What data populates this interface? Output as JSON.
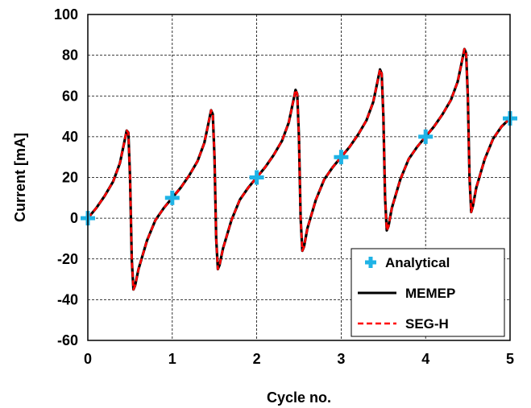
{
  "chart_data": {
    "type": "line",
    "xlabel": "Cycle no.",
    "ylabel": "Current [mA]",
    "xlim": [
      0,
      5
    ],
    "ylim": [
      -60,
      100
    ],
    "xticks": [
      0,
      1,
      2,
      3,
      4,
      5
    ],
    "yticks": [
      -60,
      -40,
      -20,
      0,
      20,
      40,
      60,
      80,
      100
    ],
    "grid": true,
    "grid_style": "dashed",
    "legend_position": "bottom-right",
    "series": [
      {
        "name": "Analytical",
        "style": "markers",
        "marker": "plus",
        "color": "#1FB3E6",
        "x": [
          0,
          1,
          2,
          3,
          4,
          5
        ],
        "y": [
          0,
          10,
          20,
          30,
          40,
          49
        ]
      },
      {
        "name": "MEMEP",
        "style": "solid-line",
        "color": "#000000",
        "x": [
          0.0,
          0.1,
          0.2,
          0.3,
          0.38,
          0.43,
          0.46,
          0.48,
          0.5,
          0.52,
          0.54,
          0.56,
          0.6,
          0.7,
          0.8,
          0.9,
          1.0,
          1.1,
          1.2,
          1.3,
          1.38,
          1.43,
          1.46,
          1.48,
          1.5,
          1.52,
          1.54,
          1.56,
          1.6,
          1.7,
          1.8,
          1.9,
          2.0,
          2.1,
          2.2,
          2.3,
          2.38,
          2.43,
          2.46,
          2.48,
          2.5,
          2.52,
          2.54,
          2.56,
          2.6,
          2.7,
          2.8,
          2.9,
          3.0,
          3.1,
          3.2,
          3.3,
          3.38,
          3.43,
          3.46,
          3.48,
          3.5,
          3.52,
          3.54,
          3.56,
          3.6,
          3.7,
          3.8,
          3.9,
          4.0,
          4.1,
          4.2,
          4.3,
          4.38,
          4.43,
          4.46,
          4.48,
          4.5,
          4.52,
          4.54,
          4.56,
          4.6,
          4.7,
          4.8,
          4.9,
          5.0
        ],
        "y": [
          0,
          5,
          11,
          18,
          27,
          37,
          43,
          42,
          20,
          -20,
          -35,
          -33,
          -25,
          -11,
          -1,
          5,
          10,
          15,
          21,
          28,
          37,
          47,
          53,
          51,
          30,
          -10,
          -25,
          -23,
          -15,
          -1,
          9,
          15,
          20,
          25,
          31,
          38,
          47,
          57,
          63,
          61,
          40,
          0,
          -16,
          -14,
          -5,
          9,
          19,
          25,
          30,
          35,
          41,
          48,
          57,
          67,
          73,
          71,
          50,
          10,
          -6,
          -4,
          5,
          19,
          29,
          35,
          40,
          45,
          51,
          58,
          67,
          77,
          83,
          81,
          60,
          20,
          3,
          6,
          15,
          29,
          39,
          45,
          49
        ]
      },
      {
        "name": "SEG-H",
        "style": "dashed-line",
        "color": "#FF0000",
        "x": [
          0.0,
          0.1,
          0.2,
          0.3,
          0.38,
          0.43,
          0.46,
          0.48,
          0.5,
          0.52,
          0.54,
          0.56,
          0.6,
          0.7,
          0.8,
          0.9,
          1.0,
          1.1,
          1.2,
          1.3,
          1.38,
          1.43,
          1.46,
          1.48,
          1.5,
          1.52,
          1.54,
          1.56,
          1.6,
          1.7,
          1.8,
          1.9,
          2.0,
          2.1,
          2.2,
          2.3,
          2.38,
          2.43,
          2.46,
          2.48,
          2.5,
          2.52,
          2.54,
          2.56,
          2.6,
          2.7,
          2.8,
          2.9,
          3.0,
          3.1,
          3.2,
          3.3,
          3.38,
          3.43,
          3.46,
          3.48,
          3.5,
          3.52,
          3.54,
          3.56,
          3.6,
          3.7,
          3.8,
          3.9,
          4.0,
          4.1,
          4.2,
          4.3,
          4.38,
          4.43,
          4.46,
          4.48,
          4.5,
          4.52,
          4.54,
          4.56,
          4.6,
          4.7,
          4.8,
          4.9,
          5.0
        ],
        "y": [
          0,
          5,
          11,
          18,
          27,
          37,
          43,
          42,
          20,
          -20,
          -35,
          -33,
          -25,
          -11,
          -1,
          5,
          10,
          15,
          21,
          28,
          37,
          47,
          53,
          51,
          30,
          -10,
          -25,
          -23,
          -15,
          -1,
          9,
          15,
          20,
          25,
          31,
          38,
          47,
          57,
          63,
          61,
          40,
          0,
          -16,
          -14,
          -5,
          9,
          19,
          25,
          30,
          35,
          41,
          48,
          57,
          67,
          73,
          71,
          50,
          10,
          -6,
          -4,
          5,
          19,
          29,
          35,
          40,
          45,
          51,
          58,
          67,
          77,
          83,
          81,
          60,
          20,
          3,
          6,
          15,
          29,
          39,
          45,
          49
        ]
      }
    ]
  }
}
